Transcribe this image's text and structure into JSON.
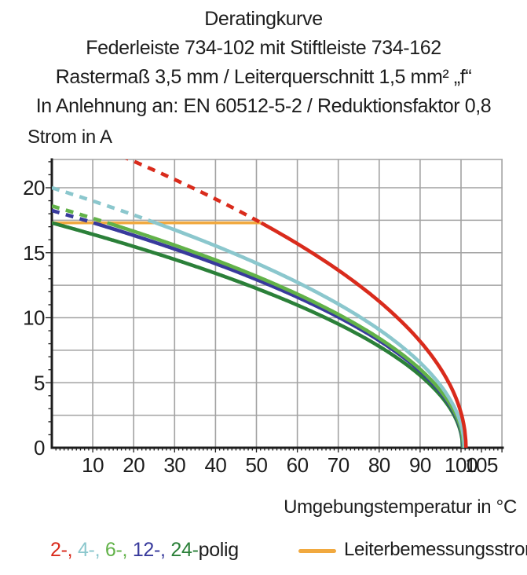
{
  "header": {
    "lines": [
      "Deratingkurve",
      "Federleiste 734-102 mit Stiftleiste 734-162",
      "Rastermaß 3,5 mm / Leiterquerschnitt 1,5 mm² „f“",
      "In Anlehnung an: EN 60512-5-2 / Reduktionsfaktor 0,8"
    ]
  },
  "chart_data": {
    "type": "line",
    "title": "Deratingkurve",
    "xlabel": "Umgebungstemperatur in °C",
    "ylabel": "Strom in A",
    "xlim": [
      0,
      110.2
    ],
    "ylim": [
      0,
      22.18
    ],
    "grid": true,
    "x_gridlines": [
      10,
      20,
      30,
      40,
      50,
      60,
      70,
      80,
      90,
      100,
      110
    ],
    "y_gridlines": [
      2.5,
      5,
      7.5,
      10,
      12.5,
      15,
      17.5,
      20
    ],
    "x_tick_labels": [
      10,
      20,
      30,
      40,
      50,
      60,
      70,
      80,
      90,
      100,
      105
    ],
    "y_tick_labels": [
      0,
      5,
      10,
      15,
      20
    ],
    "rated_current": {
      "label": "Leiterbemessungsstrom",
      "value": 17.3,
      "x_start": 0,
      "x_end": 51.1,
      "color": "#f1a93f"
    },
    "model": "I(T) = i0 * sqrt(1 - T/tmax); drawn dashed where I exceeds the rated current (Leiterbemessungsstrom), solid below it; curves capped by the orange line",
    "x_samples": [
      0,
      10,
      20,
      30,
      40,
      50,
      60,
      70,
      80,
      90,
      100
    ],
    "series": [
      {
        "name": "2-polig",
        "color": "#d92b1c",
        "i0": 24.6,
        "tmax": 101.2,
        "values_at_x": [
          24.6,
          23.3,
          22.0,
          20.6,
          19.1,
          17.4,
          15.7,
          13.6,
          11.3,
          8.2,
          2.7
        ]
      },
      {
        "name": "4-polig",
        "color": "#8bc7cd",
        "i0": 20.0,
        "tmax": 100.8,
        "values_at_x": [
          20.0,
          19.0,
          17.9,
          16.7,
          15.5,
          14.2,
          12.7,
          11.0,
          9.1,
          6.5,
          1.8
        ]
      },
      {
        "name": "6-polig",
        "color": "#62b249",
        "i0": 18.6,
        "tmax": 100.6,
        "values_at_x": [
          18.6,
          17.7,
          16.6,
          15.6,
          14.4,
          13.1,
          11.8,
          10.2,
          8.4,
          6.0,
          1.4
        ]
      },
      {
        "name": "12-polig",
        "color": "#383a9c",
        "i0": 18.25,
        "tmax": 100.5,
        "values_at_x": [
          18.3,
          17.3,
          16.3,
          15.2,
          14.0,
          12.8,
          11.5,
          10.0,
          8.2,
          5.9,
          1.3
        ]
      },
      {
        "name": "24-polig",
        "color": "#2b8039",
        "i0": 17.3,
        "tmax": 100.4,
        "values_at_x": [
          17.3,
          16.4,
          15.5,
          14.4,
          13.4,
          12.2,
          10.9,
          9.4,
          7.8,
          5.6,
          1.1
        ]
      }
    ]
  },
  "legend": {
    "pole_tokens": [
      {
        "text": "2-,",
        "color": "#d92b1c"
      },
      {
        "text": "4-,",
        "color": "#8bc7cd"
      },
      {
        "text": "6-,",
        "color": "#62b249"
      },
      {
        "text": "12-,",
        "color": "#383a9c"
      },
      {
        "text": "24-",
        "color": "#2b8039"
      },
      {
        "text": "polig",
        "color": "#1d1d1d"
      }
    ],
    "rated_label": "Leiterbemessungsstrom"
  },
  "colors": {
    "grid": "#a2a2a2",
    "axis": "#1d1d1d",
    "background": "#ffffff"
  }
}
